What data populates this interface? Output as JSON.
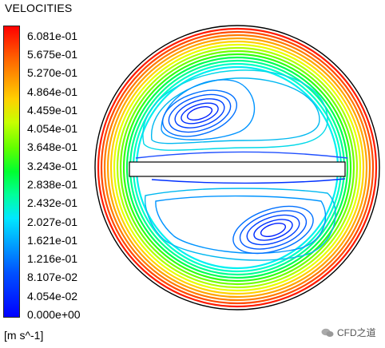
{
  "header": {
    "title": "VELOCITIES"
  },
  "legend": {
    "ticks": [
      "6.081e-01",
      "5.675e-01",
      "5.270e-01",
      "4.864e-01",
      "4.459e-01",
      "4.054e-01",
      "3.648e-01",
      "3.243e-01",
      "2.838e-01",
      "2.432e-01",
      "2.027e-01",
      "1.621e-01",
      "1.216e-01",
      "8.107e-02",
      "4.054e-02",
      "0.000e+00"
    ],
    "unit": "[m s^-1]",
    "colors": {
      "max": "#ff0000",
      "mid": "#00ff30",
      "min": "#0000ff"
    }
  },
  "watermark": {
    "text": "CFD之道",
    "icon": "wechat-icon"
  }
}
